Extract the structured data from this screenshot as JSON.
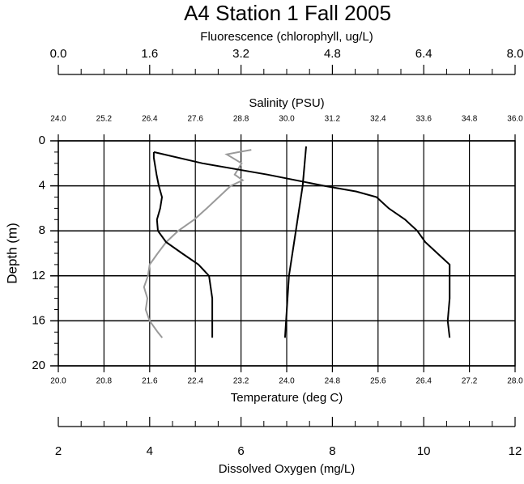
{
  "chart_data": {
    "type": "profile",
    "title": "A4 Station 1 Fall 2005",
    "ylabel": "Depth (m)",
    "ylim": [
      0,
      20
    ],
    "yticks": [
      0,
      4,
      8,
      12,
      16,
      20
    ],
    "grid": true,
    "axes": [
      {
        "label": "Fluorescence (chlorophyll, ug/L)",
        "lim": [
          0,
          8
        ],
        "ticks": [
          {
            "value": 0,
            "label": "0.0"
          },
          1.6,
          3.2,
          4.8,
          6.4,
          {
            "value": 8,
            "label": "8.0"
          }
        ]
      },
      {
        "label": "Salinity (PSU)",
        "lim": [
          24,
          36
        ],
        "ticks": [
          {
            "value": 24,
            "label": "24.0"
          },
          25.2,
          26.4,
          27.6,
          28.8,
          {
            "value": 30,
            "label": "30.0"
          },
          31.2,
          32.4,
          33.6,
          34.8,
          {
            "value": 36,
            "label": "36.0"
          }
        ]
      },
      {
        "label": "Temperature (deg C)",
        "lim": [
          20,
          28
        ],
        "ticks": [
          {
            "value": 20,
            "label": "20.0"
          },
          20.8,
          21.6,
          22.4,
          23.2,
          {
            "value": 24,
            "label": "24.0"
          },
          24.8,
          25.6,
          26.4,
          27.2,
          {
            "value": 28,
            "label": "28.0"
          }
        ]
      },
      {
        "label": "Dissolved Oxygen (mg/L)",
        "lim": [
          2,
          12
        ],
        "ticks": [
          2,
          4,
          6,
          8,
          10,
          12
        ]
      }
    ],
    "series": [
      {
        "axis": 0,
        "color": "#9a9a9a",
        "depth": [
          0.8,
          1,
          1.2,
          2,
          3,
          3.5,
          4,
          5,
          6,
          7,
          8,
          9,
          10,
          11,
          12,
          13,
          14,
          15,
          16,
          17,
          17.5
        ],
        "values": [
          3.38,
          3.16,
          2.95,
          3.21,
          3.09,
          3.23,
          3.02,
          2.81,
          2.6,
          2.38,
          2.1,
          1.89,
          1.74,
          1.6,
          1.57,
          1.5,
          1.56,
          1.53,
          1.6,
          1.74,
          1.82
        ]
      },
      {
        "axis": 1,
        "color": "#000000",
        "depth": [
          1,
          2,
          3,
          4,
          4.5,
          5,
          6,
          7,
          8,
          9,
          10,
          11,
          12,
          14,
          16,
          17.5
        ],
        "values": [
          26.51,
          27.79,
          29.49,
          30.98,
          31.83,
          32.36,
          32.68,
          33.11,
          33.43,
          33.64,
          33.96,
          34.28,
          34.28,
          34.28,
          34.23,
          34.28
        ]
      },
      {
        "axis": 2,
        "color": "#000000",
        "depth": [
          0.5,
          4,
          8,
          12,
          17.5
        ],
        "values": [
          24.34,
          24.28,
          24.16,
          24.04,
          23.97
        ]
      },
      {
        "axis": 3,
        "color": "#000000",
        "depth": [
          1,
          1.5,
          3,
          4,
          5,
          6,
          7,
          8,
          9,
          10,
          11,
          12,
          14,
          16,
          17.5
        ],
        "values": [
          4.09,
          4.09,
          4.15,
          4.2,
          4.27,
          4.23,
          4.16,
          4.18,
          4.36,
          4.71,
          5.07,
          5.3,
          5.37,
          5.37,
          5.37
        ]
      }
    ]
  }
}
